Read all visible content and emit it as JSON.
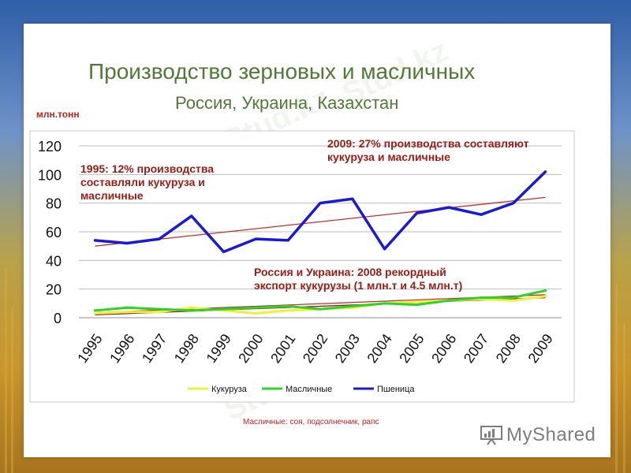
{
  "slide": {
    "title": "Производство зерновых и масличных",
    "subtitle": "Россия, Украина, Казахстан",
    "unit": "млн.тонн",
    "footnote": "Масличные: соя, подсолнечник, рапс",
    "logo": "MyShared",
    "watermark": "Stud.kz"
  },
  "annotations": [
    {
      "text": "1995: 12% производства составляли кукуруза и масличные"
    },
    {
      "text": "2009:  27% производства составляют кукуруза и масличные"
    },
    {
      "text": "Россия и Украина: 2008 рекордный экспорт кукурузы (1 млн.т и 4.5 млн.т)"
    }
  ],
  "chart_data": {
    "type": "line",
    "categories": [
      "1995",
      "1996",
      "1997",
      "1998",
      "1999",
      "2000",
      "2001",
      "2002",
      "2003",
      "2004",
      "2005",
      "2006",
      "2007",
      "2008",
      "2009"
    ],
    "ylim": [
      0,
      120
    ],
    "yticks": [
      0,
      20,
      40,
      60,
      80,
      100,
      120
    ],
    "grid": true,
    "legend": "bottom",
    "series": [
      {
        "name": "Кукуруза",
        "color": "#f2ee3c",
        "values": [
          3,
          4,
          4,
          7,
          5,
          3,
          5,
          6,
          7,
          10,
          11,
          12,
          13,
          12,
          15
        ]
      },
      {
        "name": "Масличные",
        "color": "#2bd42b",
        "values": [
          5,
          7,
          6,
          5,
          6,
          7,
          8,
          6,
          8,
          10,
          9,
          12,
          14,
          14,
          19
        ]
      },
      {
        "name": "Пшеница",
        "color": "#1a1ad6",
        "values": [
          54,
          52,
          55,
          71,
          46,
          55,
          54,
          80,
          83,
          48,
          73,
          77,
          72,
          80,
          102
        ]
      }
    ],
    "trendlines": [
      {
        "series": "Пшеница",
        "color": "#c0302a",
        "from": 50,
        "to": 84
      },
      {
        "series": "Масличные",
        "color": "#c0302a",
        "from": 3.5,
        "to": 16
      },
      {
        "series": "Кукуруза",
        "color": "#8a1a1a",
        "from": 2,
        "to": 14
      }
    ]
  }
}
